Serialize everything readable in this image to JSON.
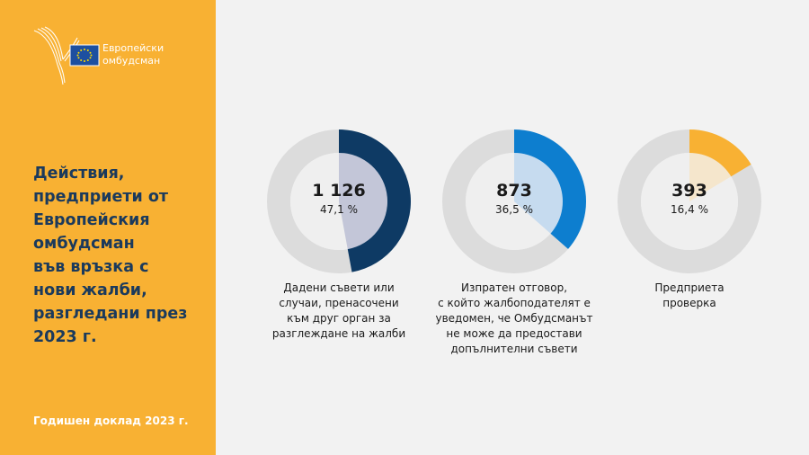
{
  "logo": {
    "line1": "Европейски",
    "line2": "омбудсман"
  },
  "title_lines": [
    "Действия,",
    "предприети от",
    "Европейския",
    "омбудсман",
    "във връзка с",
    "нови жалби,",
    "разгледани през",
    "2023 г."
  ],
  "footer": "Годишен доклад 2023 г.",
  "colors": {
    "sidebar": "#f8b133",
    "background": "#f2f2f2",
    "ring_track": "#dcdcdc",
    "series_colors": [
      "#0e3a64",
      "#0d7ecf",
      "#f8b133"
    ],
    "center_fills": [
      "#c3c6d8",
      "#c6dbef",
      "#f5e6cc"
    ]
  },
  "chart_data": {
    "type": "pie",
    "charts": [
      {
        "value": 1126,
        "value_label": "1 126",
        "percent": 47.1,
        "percent_label": "47,1 %",
        "description_lines": [
          "Дадени съвети или",
          "случаи, пренасочени",
          "към друг орган за",
          "разглеждане на жалби"
        ]
      },
      {
        "value": 873,
        "value_label": "873",
        "percent": 36.5,
        "percent_label": "36,5 %",
        "description_lines": [
          "Изпратен отговор,",
          "с който жалбоподателят е",
          "уведомен, че Омбудсманът",
          "не може да предостави",
          "допълнителни съвети"
        ]
      },
      {
        "value": 393,
        "value_label": "393",
        "percent": 16.4,
        "percent_label": "16,4 %",
        "description_lines": [
          "Предприета",
          "проверка"
        ]
      }
    ]
  }
}
